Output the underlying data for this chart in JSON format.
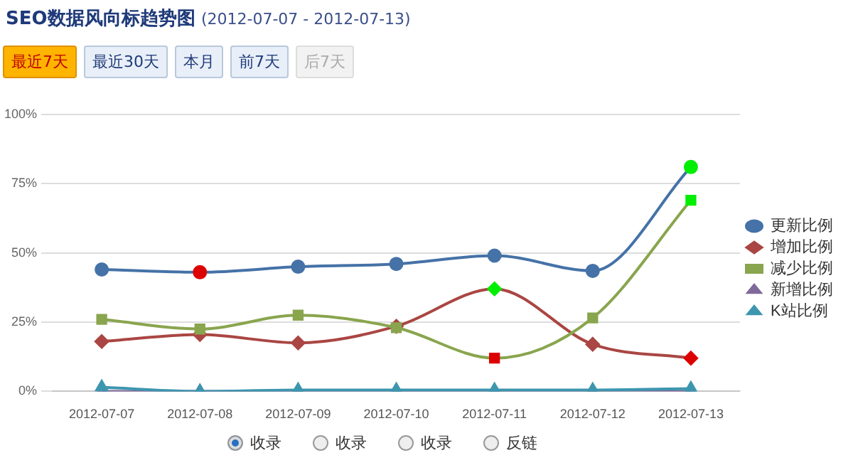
{
  "chart_data": {
    "type": "line",
    "title": "SEO数据风向标趋势图",
    "subtitle": "(2012-07-07 - 2012-07-13)",
    "categories": [
      "2012-07-07",
      "2012-07-08",
      "2012-07-09",
      "2012-07-10",
      "2012-07-11",
      "2012-07-12",
      "2012-07-13"
    ],
    "series": [
      {
        "name": "更新比例",
        "color": "#4572a7",
        "marker": "circle",
        "values": [
          44,
          43,
          45,
          46,
          49,
          43.5,
          81
        ],
        "colors": [
          "#4572a7",
          "#dd0000",
          "#4572a7",
          "#4572a7",
          "#4572a7",
          "#4572a7",
          "#00ee00"
        ]
      },
      {
        "name": "增加比例",
        "color": "#aa4643",
        "marker": "diamond",
        "values": [
          18,
          20.5,
          17.5,
          23.5,
          37,
          17,
          12
        ],
        "colors": [
          "#aa4643",
          "#aa4643",
          "#aa4643",
          "#aa4643",
          "#00ee00",
          "#aa4643",
          "#dd0000"
        ]
      },
      {
        "name": "减少比例",
        "color": "#89a54e",
        "marker": "square",
        "values": [
          26,
          22.5,
          27.5,
          23,
          12,
          26.5,
          69
        ],
        "colors": [
          "#89a54e",
          "#89a54e",
          "#89a54e",
          "#89a54e",
          "#dd0000",
          "#89a54e",
          "#00ee00"
        ]
      },
      {
        "name": "新增比例",
        "color": "#80699b",
        "marker": "triangle",
        "values": [
          0,
          0,
          0,
          0,
          0,
          0,
          0
        ]
      },
      {
        "name": "K站比例",
        "color": "#3d96ae",
        "marker": "triangle",
        "values": [
          1.5,
          0,
          0.5,
          0.5,
          0.5,
          0.5,
          1
        ]
      }
    ],
    "ylim": [
      0,
      100
    ],
    "yticks": [
      {
        "value": 0,
        "label": "0%"
      },
      {
        "value": 25,
        "label": "25%"
      },
      {
        "value": 50,
        "label": "50%"
      },
      {
        "value": 75,
        "label": "75%"
      },
      {
        "value": 100,
        "label": "100%"
      }
    ],
    "grid": "y",
    "legend": "right",
    "annotations": [
      "最近7天",
      "最近30天",
      "本月",
      "前7天",
      "后7天",
      "收录",
      "收录",
      "收录",
      "反链"
    ]
  }
}
